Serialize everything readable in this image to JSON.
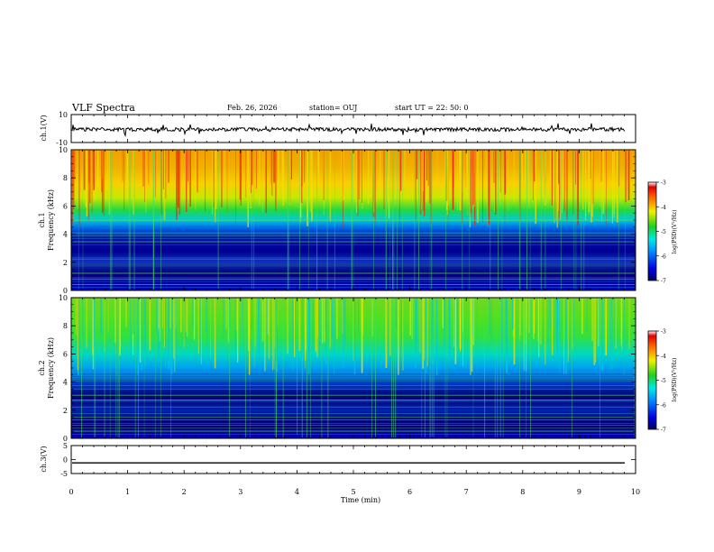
{
  "header": {
    "title": "VLF Spectra",
    "date": "Feb. 26, 2026",
    "station": "station= OUJ",
    "start": "start UT =  22: 50: 0"
  },
  "chart_data": {
    "type": "heatmap",
    "x_axis": {
      "label": "Time (min)",
      "range": [
        0,
        10
      ],
      "ticks": [
        "0",
        "1",
        "2",
        "3",
        "4",
        "5",
        "6",
        "7",
        "8",
        "9",
        "10"
      ]
    },
    "panels": [
      {
        "name": "ch1-waveform",
        "ylabel": "ch.1(V)",
        "ylim": [
          -10,
          10
        ],
        "yticks": [
          "10",
          "-10"
        ],
        "type": "line"
      },
      {
        "name": "ch1-spectrogram",
        "ylabel_1": "ch.1",
        "ylabel_2": "Frequency (kHz)",
        "ylim": [
          0,
          10
        ],
        "yticks": [
          "0",
          "2",
          "4",
          "6",
          "8",
          "10"
        ],
        "type": "heatmap",
        "colorbar": {
          "label": "log(PSD)(V²/Hz)",
          "range": [
            -7,
            -3
          ],
          "ticks": [
            "-3",
            "-4",
            "-5",
            "-6",
            "-7"
          ]
        }
      },
      {
        "name": "ch2-spectrogram",
        "ylabel_1": "ch.2",
        "ylabel_2": "Frequency (kHz)",
        "ylim": [
          0,
          10
        ],
        "yticks": [
          "0",
          "2",
          "4",
          "6",
          "8",
          "10"
        ],
        "type": "heatmap",
        "colorbar": {
          "label": "log(PSD)(V²/Hz)",
          "range": [
            -7,
            -3
          ],
          "ticks": [
            "-3",
            "-4",
            "-5",
            "-6",
            "-7"
          ]
        }
      },
      {
        "name": "ch3-waveform",
        "ylabel": "ch.3(V)",
        "ylim": [
          -5,
          5
        ],
        "yticks": [
          "5",
          "0",
          "-5"
        ],
        "type": "line",
        "level": -1.2
      }
    ]
  }
}
